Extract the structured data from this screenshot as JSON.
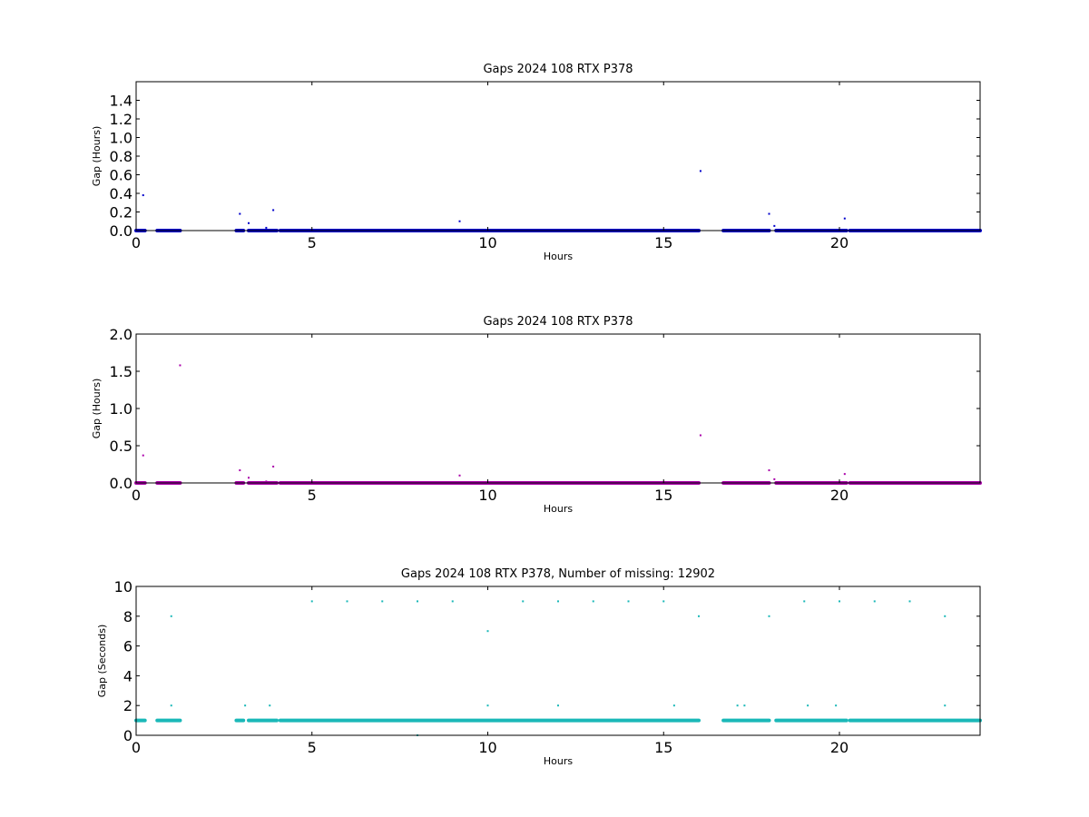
{
  "chart_data": [
    {
      "type": "scatter",
      "title": "Gaps 2024 108 RTX  P378",
      "xlabel": "Hours",
      "ylabel": "Gap (Hours)",
      "xlim": [
        0,
        24
      ],
      "ylim": [
        0,
        1.6
      ],
      "xticks": [
        0,
        5,
        10,
        15,
        20
      ],
      "yticks": [
        0.0,
        0.2,
        0.4,
        0.6,
        0.8,
        1.0,
        1.2,
        1.4
      ],
      "ytick_labels": [
        "0.0",
        "0.2",
        "0.4",
        "0.6",
        "0.8",
        "1.0",
        "1.2",
        "1.4"
      ],
      "grid": false,
      "color": "#0000cc",
      "baseline_y": 0.0,
      "baseline_segments": [
        [
          0.0,
          0.25
        ],
        [
          0.6,
          1.25
        ],
        [
          2.85,
          3.05
        ],
        [
          3.2,
          4.0
        ],
        [
          4.1,
          16.0
        ],
        [
          16.7,
          18.0
        ],
        [
          18.2,
          20.2
        ],
        [
          20.3,
          24.0
        ]
      ],
      "points": [
        [
          0.2,
          0.38
        ],
        [
          2.95,
          0.18
        ],
        [
          3.2,
          0.08
        ],
        [
          3.7,
          0.03
        ],
        [
          3.9,
          0.22
        ],
        [
          9.2,
          0.1
        ],
        [
          16.05,
          0.64
        ],
        [
          18.0,
          0.18
        ],
        [
          18.15,
          0.05
        ],
        [
          20.15,
          0.13
        ]
      ]
    },
    {
      "type": "scatter",
      "title": "Gaps 2024 108 RTX  P378",
      "xlabel": "Hours",
      "ylabel": "Gap (Hours)",
      "xlim": [
        0,
        24
      ],
      "ylim": [
        0,
        2.0
      ],
      "xticks": [
        0,
        5,
        10,
        15,
        20
      ],
      "yticks": [
        0.0,
        0.5,
        1.0,
        1.5,
        2.0
      ],
      "ytick_labels": [
        "0.0",
        "0.5",
        "1.0",
        "1.5",
        "2.0"
      ],
      "grid": false,
      "color": "#aa00aa",
      "baseline_y": 0.0,
      "baseline_segments": [
        [
          0.0,
          0.25
        ],
        [
          0.6,
          1.25
        ],
        [
          2.85,
          3.05
        ],
        [
          3.2,
          4.0
        ],
        [
          4.1,
          16.0
        ],
        [
          16.7,
          18.0
        ],
        [
          18.2,
          20.2
        ],
        [
          20.3,
          24.0
        ]
      ],
      "points": [
        [
          0.2,
          0.37
        ],
        [
          1.25,
          1.58
        ],
        [
          2.95,
          0.17
        ],
        [
          3.2,
          0.07
        ],
        [
          3.7,
          0.02
        ],
        [
          3.9,
          0.22
        ],
        [
          9.2,
          0.1
        ],
        [
          16.05,
          0.64
        ],
        [
          18.0,
          0.17
        ],
        [
          18.15,
          0.05
        ],
        [
          20.15,
          0.12
        ]
      ]
    },
    {
      "type": "scatter",
      "title": "Gaps 2024 108 RTX  P378, Number of missing: 12902",
      "xlabel": "Hours",
      "ylabel": "Gap (Seconds)",
      "xlim": [
        0,
        24
      ],
      "ylim": [
        0,
        10
      ],
      "xticks": [
        0,
        5,
        10,
        15,
        20
      ],
      "yticks": [
        0,
        2,
        4,
        6,
        8,
        10
      ],
      "ytick_labels": [
        "0",
        "2",
        "4",
        "6",
        "8",
        "10"
      ],
      "grid": false,
      "color": "#1ab8b8",
      "baseline_y": 1.0,
      "baseline_segments": [
        [
          0.0,
          0.25
        ],
        [
          0.6,
          1.25
        ],
        [
          2.85,
          3.05
        ],
        [
          3.2,
          4.0
        ],
        [
          4.1,
          16.0
        ],
        [
          16.7,
          18.0
        ],
        [
          18.2,
          20.2
        ],
        [
          20.3,
          24.0
        ]
      ],
      "points": [
        [
          1.0,
          8
        ],
        [
          5.0,
          9
        ],
        [
          6.0,
          9
        ],
        [
          7.0,
          9
        ],
        [
          8.0,
          9
        ],
        [
          9.0,
          9
        ],
        [
          10.0,
          7
        ],
        [
          11.0,
          9
        ],
        [
          12.0,
          9
        ],
        [
          13.0,
          9
        ],
        [
          14.0,
          9
        ],
        [
          15.0,
          9
        ],
        [
          16.0,
          8
        ],
        [
          18.0,
          8
        ],
        [
          19.0,
          9
        ],
        [
          20.0,
          9
        ],
        [
          21.0,
          9
        ],
        [
          22.0,
          9
        ],
        [
          23.0,
          8
        ],
        [
          1.0,
          2
        ],
        [
          3.1,
          2
        ],
        [
          3.8,
          2
        ],
        [
          10.0,
          2
        ],
        [
          12.0,
          2
        ],
        [
          15.3,
          2
        ],
        [
          17.1,
          2
        ],
        [
          17.3,
          2
        ],
        [
          19.1,
          2
        ],
        [
          19.9,
          2
        ],
        [
          23.0,
          2
        ],
        [
          8.0,
          0
        ]
      ]
    }
  ]
}
